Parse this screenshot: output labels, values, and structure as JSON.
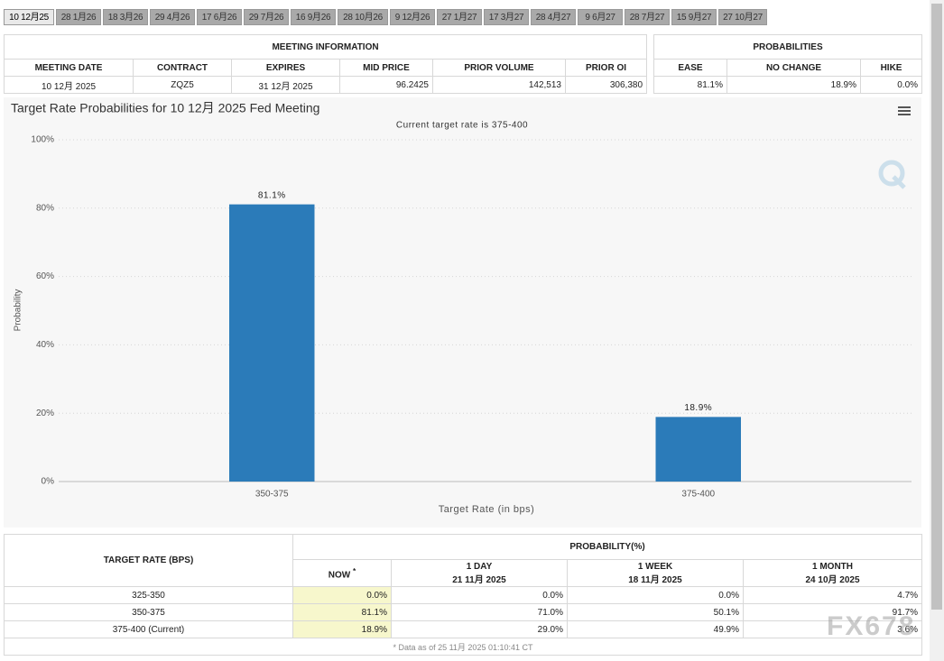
{
  "tabs": [
    "10 12月25",
    "28 1月26",
    "18 3月26",
    "29 4月26",
    "17 6月26",
    "29 7月26",
    "16 9月26",
    "28 10月26",
    "9 12月26",
    "27 1月27",
    "17 3月27",
    "28 4月27",
    "9 6月27",
    "28 7月27",
    "15 9月27",
    "27 10月27"
  ],
  "meeting_info": {
    "title": "MEETING INFORMATION",
    "headers": [
      "MEETING DATE",
      "CONTRACT",
      "EXPIRES",
      "MID PRICE",
      "PRIOR VOLUME",
      "PRIOR OI"
    ],
    "row": [
      "10 12月 2025",
      "ZQZ5",
      "31 12月 2025",
      "96.2425",
      "142,513",
      "306,380"
    ]
  },
  "probabilities": {
    "title": "PROBABILITIES",
    "headers": [
      "EASE",
      "NO CHANGE",
      "HIKE"
    ],
    "row": [
      "81.1%",
      "18.9%",
      "0.0%"
    ]
  },
  "chart_data": {
    "type": "bar",
    "title": "Target Rate Probabilities for 10 12月 2025 Fed Meeting",
    "subtitle": "Current target rate is 375-400",
    "x_label": "Target Rate (in bps)",
    "y_label": "Probability",
    "categories": [
      "350-375",
      "375-400"
    ],
    "values": [
      81.1,
      18.9
    ],
    "value_labels": [
      "81.1%",
      "18.9%"
    ],
    "color": "#2b7bb9",
    "ylim": [
      0,
      100
    ],
    "yticks": [
      {
        "value": 0,
        "label": "0%"
      },
      {
        "value": 20,
        "label": "20%"
      },
      {
        "value": 40,
        "label": "40%"
      },
      {
        "value": 60,
        "label": "60%"
      },
      {
        "value": 80,
        "label": "80%"
      },
      {
        "value": 100,
        "label": "100%"
      }
    ],
    "grid": true
  },
  "history": {
    "rate_header": "TARGET RATE (BPS)",
    "prob_header": "PROBABILITY(%)",
    "columns": [
      {
        "label": "NOW",
        "note": "*"
      },
      {
        "label": "1 DAY",
        "date": "21 11月 2025"
      },
      {
        "label": "1 WEEK",
        "date": "18 11月 2025"
      },
      {
        "label": "1 MONTH",
        "date": "24 10月 2025"
      }
    ],
    "rows": [
      [
        "325-350",
        "0.0%",
        "0.0%",
        "0.0%",
        "4.7%"
      ],
      [
        "350-375",
        "81.1%",
        "71.0%",
        "50.1%",
        "91.7%"
      ],
      [
        "375-400 (Current)",
        "18.9%",
        "29.0%",
        "49.9%",
        "3.6%"
      ]
    ],
    "footnote": "* Data as of 25 11月 2025 01:10:41 CT"
  },
  "watermark": "FX678"
}
